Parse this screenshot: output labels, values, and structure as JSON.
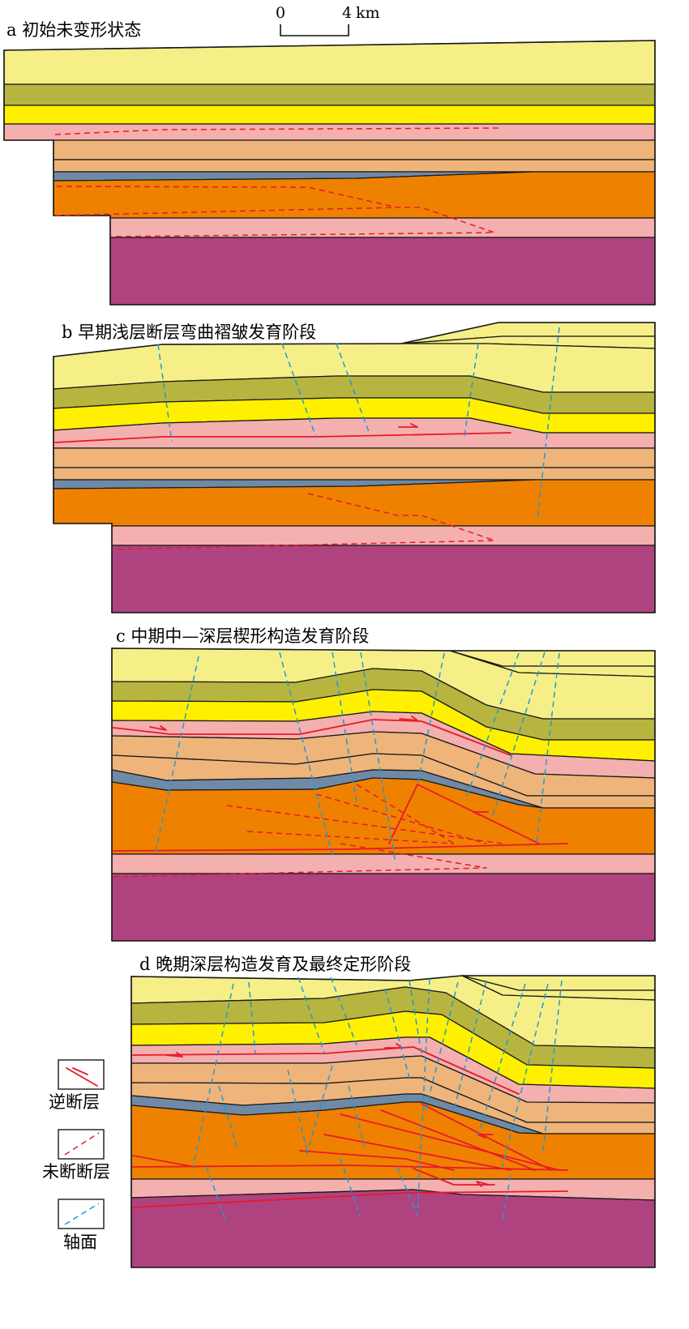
{
  "colors": {
    "layer1": "#f6ef87",
    "layer2": "#b7b53f",
    "layer3": "#fff000",
    "layer4": "#f4b0ae",
    "layer5": "#efb47a",
    "layer6": "#6f8aa6",
    "layer7": "#ef8100",
    "layer8": "#af437f",
    "thrust_fault": "#e8192c",
    "blind_fault": "#e8192c",
    "axial_surface": "#1e9ad6"
  },
  "scale_bar": {
    "zero": "0",
    "end": "4",
    "unit": "km"
  },
  "panels": [
    {
      "label": "a 初始未变形状态"
    },
    {
      "label": "b 早期浅层断层弯曲褶皱发育阶段"
    },
    {
      "label": "c 中期中—深层楔形构造发育阶段"
    },
    {
      "label": "d 晚期深层构造发育及最终定形阶段"
    }
  ],
  "legend": [
    {
      "label": "逆断层",
      "icon": "thrust-fault-icon"
    },
    {
      "label": "未断断层",
      "icon": "blind-fault-icon"
    },
    {
      "label": "轴面",
      "icon": "axial-surface-icon"
    }
  ]
}
